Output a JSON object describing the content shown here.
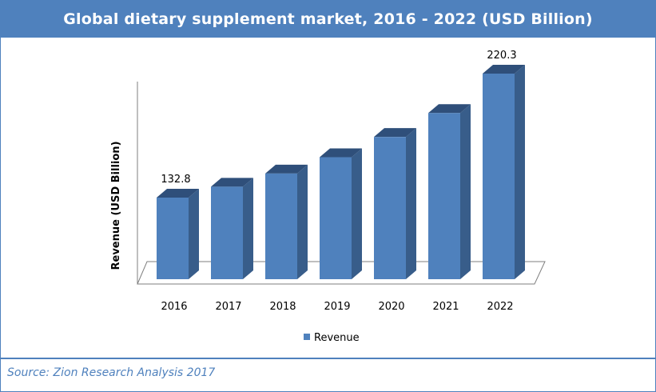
{
  "chart_data": {
    "type": "bar",
    "title": "Global dietary supplement market, 2016 - 2022 (USD Billion)",
    "ylabel": "Revenue (USD Billion)",
    "xlabel": "",
    "categories": [
      "2016",
      "2017",
      "2018",
      "2019",
      "2020",
      "2021",
      "2022"
    ],
    "series": [
      {
        "name": "Revenue",
        "values": [
          132.8,
          140.5,
          149.8,
          161.3,
          175.6,
          192.5,
          220.3
        ]
      }
    ],
    "data_labels": [
      "132.8",
      "",
      "",
      "",
      "",
      "",
      "220.3"
    ],
    "ylim": [
      0,
      230
    ],
    "grid": false,
    "legend": "bottom",
    "colors": {
      "front": "#4f81bd",
      "side": "#385d8a",
      "top": "#2f4f7a",
      "header": "#4f81bd"
    }
  },
  "source": "Source: Zion Research Analysis 2017"
}
